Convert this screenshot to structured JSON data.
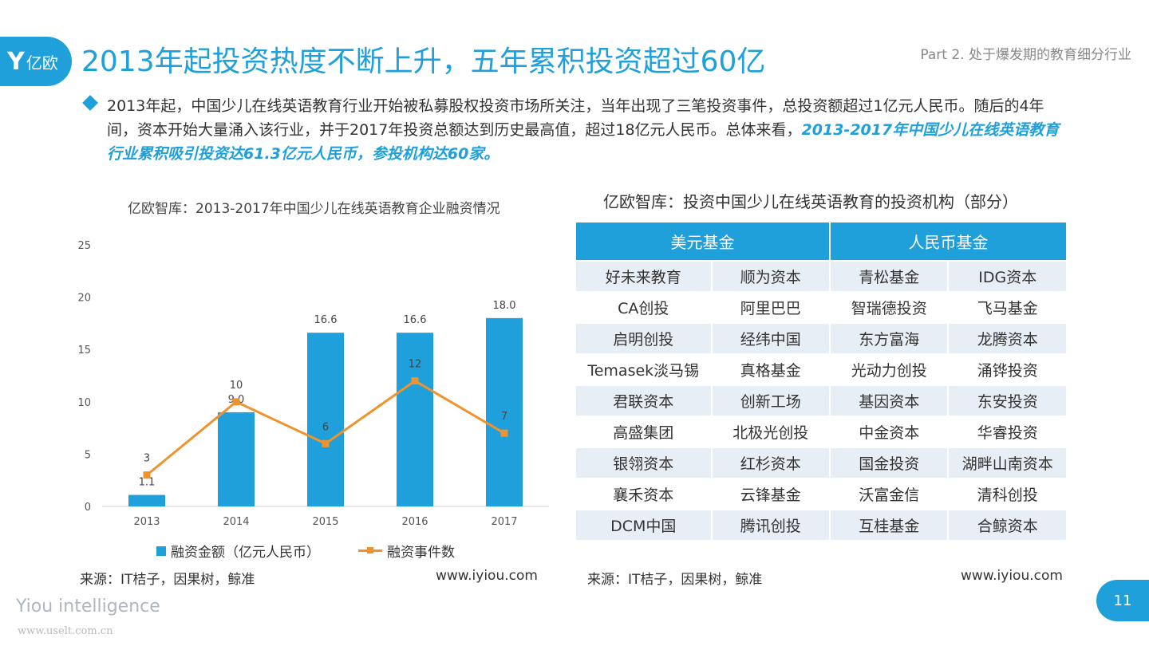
{
  "header": {
    "logo_mark": "Y",
    "logo_text": "亿欧",
    "title": "2013年起投资热度不断上升，五年累积投资超过60亿",
    "part": "Part 2. 处于爆发期的教育细分行业"
  },
  "summary": {
    "text": "2013年起，中国少儿在线英语教育行业开始被私募股权投资市场所关注，当年出现了三笔投资事件，总投资额超过1亿元人民币。随后的4年间，资本开始大量涌入该行业，并于2017年投资总额达到历史最高值，超过18亿元人民币。总体来看，",
    "highlight": "2013-2017年中国少儿在线英语教育行业累积吸引投资达61.3亿元人民币，参投机构达60家。"
  },
  "chart_data": {
    "type": "bar",
    "title": "亿欧智库：2013-2017年中国少儿在线英语教育企业融资情况",
    "categories": [
      "2013",
      "2014",
      "2015",
      "2016",
      "2017"
    ],
    "ylim": [
      0,
      25
    ],
    "yticks": [
      0,
      5,
      10,
      15,
      20,
      25
    ],
    "series": [
      {
        "name": "融资金额（亿元人民币）",
        "kind": "bar",
        "values": [
          1.1,
          9.0,
          16.6,
          16.6,
          18.0
        ],
        "labels": [
          "1.1",
          "9.0",
          "16.6",
          "16.6",
          "18.0"
        ],
        "color": "#1fa0da"
      },
      {
        "name": "融资事件数",
        "kind": "line",
        "values": [
          3,
          10,
          6,
          12,
          7
        ],
        "labels": [
          "3",
          "10",
          "6",
          "12",
          "7"
        ],
        "color": "#f0922d"
      }
    ],
    "legend": "bottom",
    "grid": false
  },
  "chart_source": {
    "source": "来源：IT桔子，因果树，鲸准",
    "site": "www.iyiou.com"
  },
  "investors": {
    "title": "亿欧智库：投资中国少儿在线英语教育的投资机构（部分）",
    "headers": [
      "美元基金",
      "人民币基金"
    ],
    "rows": [
      [
        "好未来教育",
        "顺为资本",
        "青松基金",
        "IDG资本"
      ],
      [
        "CA创投",
        "阿里巴巴",
        "智瑞德投资",
        "飞马基金"
      ],
      [
        "启明创投",
        "经纬中国",
        "东方富海",
        "龙腾资本"
      ],
      [
        "Temasek淡马锡",
        "真格基金",
        "光动力创投",
        "涌铧投资"
      ],
      [
        "君联资本",
        "创新工场",
        "基因资本",
        "东安投资"
      ],
      [
        "高盛集团",
        "北极光创投",
        "中金资本",
        "华睿投资"
      ],
      [
        "银翎资本",
        "红杉资本",
        "国金投资",
        "湖畔山南资本"
      ],
      [
        "襄禾资本",
        "云锋基金",
        "沃富金信",
        "清科创投"
      ],
      [
        "DCM中国",
        "腾讯创投",
        "互桂基金",
        "合鲸资本"
      ]
    ],
    "source": "来源：IT桔子，因果树，鲸准",
    "site": "www.iyiou.com"
  },
  "footer": {
    "brand": "Yiou intelligence",
    "watermark": "www.uselt.com.cn",
    "page": "11"
  }
}
